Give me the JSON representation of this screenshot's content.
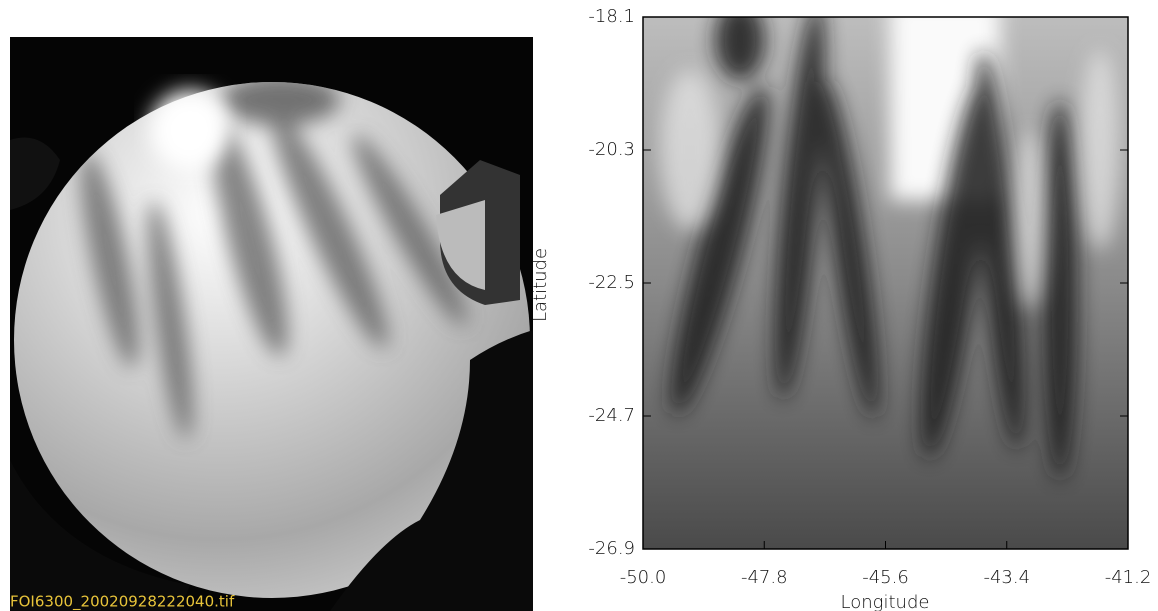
{
  "left_image": {
    "caption": "FOI6300_20020928222040.tif"
  },
  "chart_data": {
    "type": "image",
    "xlabel": "Longitude",
    "ylabel": "Latitude",
    "xlim": [
      -50.0,
      -41.2
    ],
    "ylim": [
      -26.9,
      -18.1
    ],
    "xticks": [
      {
        "value": -50.0,
        "label": "-50.0"
      },
      {
        "value": -47.8,
        "label": "-47.8"
      },
      {
        "value": -45.6,
        "label": "-45.6"
      },
      {
        "value": -43.4,
        "label": "-43.4"
      },
      {
        "value": -41.2,
        "label": "-41.2"
      }
    ],
    "yticks": [
      {
        "value": -18.1,
        "label": "-18.1"
      },
      {
        "value": -20.3,
        "label": "-20.3"
      },
      {
        "value": -22.5,
        "label": "-22.5"
      },
      {
        "value": -24.7,
        "label": "-24.7"
      },
      {
        "value": -26.9,
        "label": "-26.9"
      }
    ]
  }
}
